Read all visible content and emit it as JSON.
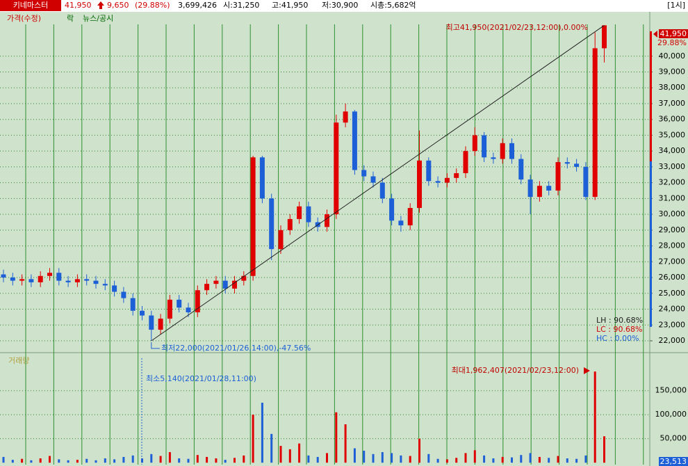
{
  "header": {
    "name": "키네마스터",
    "price": "41,950",
    "change": "9,650",
    "rate": "(29.88%)",
    "volume": "3,699,426",
    "open": "시:31,250",
    "high": "고:41,950",
    "low": "저:30,900",
    "cap": "시총:5,682억",
    "period": "[1시]"
  },
  "chart_data": {
    "type": "candlestick",
    "legend": [
      "가격(수정)",
      "락",
      "뉴스/공시"
    ],
    "open": [
      26200,
      26000,
      25800,
      25900,
      25700,
      26100,
      26300,
      25800,
      25700,
      25900,
      25800,
      25600,
      25500,
      25100,
      24700,
      23900,
      23600,
      22700,
      23400,
      24600,
      24100,
      23800,
      25200,
      25600,
      25800,
      25300,
      25800,
      26100,
      33600,
      31000,
      27800,
      29000,
      29700,
      30500,
      29500,
      29200,
      30000,
      35800,
      36500,
      32800,
      32400,
      32000,
      31000,
      29600,
      29300,
      30400,
      33400,
      32100,
      32000,
      32300,
      32600,
      34000,
      35000,
      33600,
      33500,
      34500,
      33500,
      32200,
      31100,
      31800,
      31500,
      33300,
      33200,
      33000,
      31100,
      40500
    ],
    "high": [
      26500,
      26300,
      26200,
      26200,
      26400,
      26600,
      26600,
      26100,
      26200,
      26200,
      26100,
      25900,
      25800,
      25400,
      25000,
      24200,
      23900,
      23700,
      24900,
      24900,
      24400,
      25500,
      25900,
      26100,
      26100,
      26100,
      26400,
      33700,
      33700,
      31300,
      29300,
      30000,
      30800,
      30800,
      29800,
      30300,
      36300,
      37000,
      36600,
      33100,
      32700,
      32300,
      31300,
      29900,
      30700,
      35300,
      33600,
      32400,
      32600,
      32900,
      34300,
      35500,
      35200,
      33900,
      34800,
      34800,
      33800,
      32500,
      32100,
      32100,
      33600,
      33600,
      33500,
      33300,
      41500,
      41950
    ],
    "low": [
      25700,
      25500,
      25500,
      25400,
      25400,
      25800,
      25500,
      25400,
      25400,
      25500,
      25300,
      25200,
      24800,
      24400,
      23600,
      23300,
      22000,
      22400,
      23100,
      23800,
      23500,
      23500,
      24900,
      25300,
      25000,
      25000,
      25500,
      25800,
      30700,
      27100,
      27500,
      28700,
      29400,
      29200,
      28900,
      28900,
      29700,
      35500,
      32500,
      32100,
      31700,
      30700,
      29300,
      28900,
      29000,
      30100,
      31800,
      31700,
      31700,
      32000,
      32300,
      33700,
      33300,
      33200,
      33200,
      33200,
      31900,
      30000,
      30800,
      31200,
      31200,
      32900,
      32700,
      30900,
      30900,
      39600
    ],
    "close": [
      26000,
      25800,
      25900,
      25700,
      26100,
      26300,
      25800,
      25700,
      25900,
      25800,
      25600,
      25500,
      25100,
      24700,
      23900,
      23600,
      22700,
      23400,
      24600,
      24100,
      23800,
      25200,
      25600,
      25800,
      25300,
      25800,
      26100,
      33600,
      31000,
      27800,
      29000,
      29700,
      30500,
      29500,
      29200,
      30000,
      35800,
      36500,
      32800,
      32400,
      32000,
      31000,
      29600,
      29300,
      30400,
      33400,
      32100,
      32000,
      32300,
      32600,
      34000,
      35000,
      33600,
      33500,
      34500,
      33500,
      32200,
      31100,
      31800,
      31500,
      33300,
      33200,
      33000,
      31100,
      40500,
      41950
    ],
    "colors": {
      "up": "#e00000",
      "down": "#1c5fd6"
    },
    "ylim": [
      21340,
      42760
    ],
    "yticks": [
      {
        "value": 22000,
        "label": "22,000"
      },
      {
        "value": 23000,
        "label": "23,000"
      },
      {
        "value": 24000,
        "label": "24,000"
      },
      {
        "value": 25000,
        "label": "25,000"
      },
      {
        "value": 26000,
        "label": "26,000"
      },
      {
        "value": 27000,
        "label": "27,000"
      },
      {
        "value": 28000,
        "label": "28,000"
      },
      {
        "value": 29000,
        "label": "29,000"
      },
      {
        "value": 30000,
        "label": "30,000"
      },
      {
        "value": 31000,
        "label": "31,000"
      },
      {
        "value": 32000,
        "label": "32,000"
      },
      {
        "value": 33000,
        "label": "33,000"
      },
      {
        "value": 34000,
        "label": "34,000"
      },
      {
        "value": 35000,
        "label": "35,000"
      },
      {
        "value": 36000,
        "label": "36,000"
      },
      {
        "value": 37000,
        "label": "37,000"
      },
      {
        "value": 38000,
        "label": "38,000"
      },
      {
        "value": 39000,
        "label": "39,000"
      },
      {
        "value": 40000,
        "label": "40,000"
      }
    ],
    "grid": true,
    "price_label": "41,950",
    "rate_label": "29.88%",
    "high_note": "최고41,950(2021/02/23,12:00),0.00%",
    "low_note": "최저22,000(2021/01/26,14:00),-47.56%",
    "stats": [
      "LH : 90.68%",
      "LC : 90.68%",
      "HC :  0.00%"
    ]
  },
  "volume_chart": {
    "type": "bar",
    "legend": "거래량",
    "values": [
      12000,
      6000,
      8000,
      5000,
      9000,
      14000,
      7000,
      5000,
      6000,
      8000,
      5000,
      9000,
      7000,
      12000,
      15000,
      9000,
      18000,
      14000,
      22000,
      9000,
      8000,
      16000,
      12000,
      9000,
      6000,
      10000,
      15000,
      100000,
      125000,
      60000,
      35000,
      28000,
      40000,
      15000,
      12000,
      20000,
      105000,
      80000,
      30000,
      25000,
      18000,
      22000,
      20000,
      15000,
      14000,
      50000,
      18000,
      8000,
      7000,
      10000,
      20000,
      26000,
      15000,
      9000,
      12000,
      11000,
      16000,
      20000,
      12000,
      10000,
      14000,
      9000,
      8000,
      15000,
      190000,
      55000
    ],
    "ylim": [
      -4000,
      225000
    ],
    "yticks": [
      {
        "value": 50000,
        "label": "50,000"
      },
      {
        "value": 100000,
        "label": "100,000"
      },
      {
        "value": 150000,
        "label": "150,000"
      }
    ],
    "last_label": "23,513",
    "max_note": "최대1,962,407(2021/02/23,12:00)",
    "min_note": "최소5,140(2021/01/28,11:00)"
  }
}
